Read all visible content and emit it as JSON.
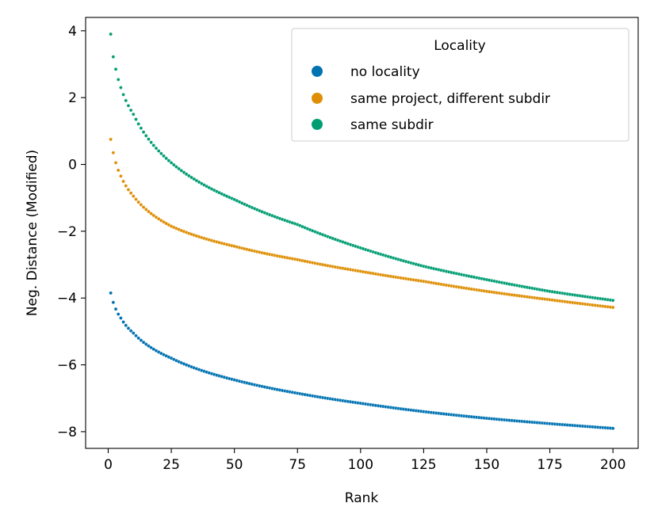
{
  "chart_data": {
    "type": "scatter",
    "title": "",
    "xlabel": "Rank",
    "ylabel": "Neg. Distance (Modified)",
    "xlim": [
      -8.95,
      210
    ],
    "ylim": [
      -8.5,
      4.4
    ],
    "x_ticks": [
      0,
      25,
      50,
      75,
      100,
      125,
      150,
      175,
      200
    ],
    "x_tick_labels": [
      "0",
      "25",
      "50",
      "75",
      "100",
      "125",
      "150",
      "175",
      "200"
    ],
    "y_ticks": [
      4,
      2,
      0,
      -2,
      -4,
      -6,
      -8
    ],
    "y_tick_labels": [
      "4",
      "2",
      "0",
      "−2",
      "−4",
      "−6",
      "−8"
    ],
    "legend": {
      "title": "Locality",
      "position": "top-right"
    },
    "x_range": {
      "start": 1,
      "end": 200,
      "step": 1
    },
    "series": [
      {
        "name": "no locality",
        "color": "#0173b2",
        "anchors_x": [
          1,
          2,
          3,
          5,
          10,
          25,
          50,
          75,
          100,
          125,
          150,
          175,
          200
        ],
        "anchors_y": [
          -3.85,
          -4.13,
          -4.33,
          -4.6,
          -5.05,
          -5.8,
          -6.45,
          -6.85,
          -7.15,
          -7.4,
          -7.6,
          -7.76,
          -7.9
        ]
      },
      {
        "name": "same project, different subdir",
        "color": "#de8f05",
        "anchors_x": [
          1,
          2,
          3,
          5,
          10,
          25,
          50,
          75,
          100,
          125,
          150,
          175,
          200
        ],
        "anchors_y": [
          0.75,
          0.35,
          0.05,
          -0.35,
          -0.95,
          -1.85,
          -2.45,
          -2.85,
          -3.2,
          -3.5,
          -3.8,
          -4.05,
          -4.28
        ]
      },
      {
        "name": "same subdir",
        "color": "#029e73",
        "anchors_x": [
          1,
          2,
          3,
          5,
          10,
          25,
          50,
          75,
          100,
          125,
          150,
          175,
          200
        ],
        "anchors_y": [
          3.9,
          3.22,
          2.85,
          2.3,
          1.5,
          0.05,
          -1.05,
          -1.8,
          -2.5,
          -3.05,
          -3.45,
          -3.8,
          -4.07
        ]
      }
    ]
  }
}
